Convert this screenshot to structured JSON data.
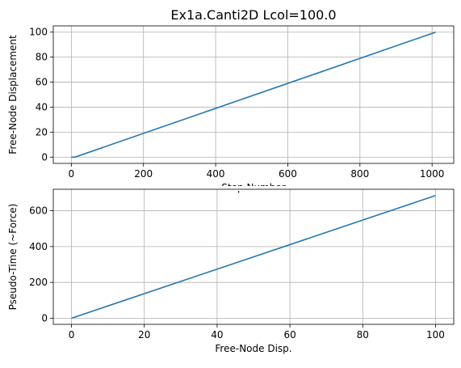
{
  "figure_title": "Ex1a.Canti2D Lcol=100.0",
  "colors": {
    "line": "#1f77b4",
    "grid": "#b0b0b0",
    "axis": "#000000"
  },
  "chart_data": [
    {
      "type": "line",
      "title": "",
      "xlabel": "Step Number",
      "ylabel": "Free-Node Displacement",
      "xlim": [
        -50,
        1060
      ],
      "ylim": [
        -5,
        105
      ],
      "xticks": [
        0,
        200,
        400,
        600,
        800,
        1000
      ],
      "yticks": [
        0,
        20,
        40,
        60,
        80,
        100
      ],
      "grid": true,
      "series": [
        {
          "x": [
            0,
            10,
            1010
          ],
          "y": [
            0,
            0,
            100
          ]
        }
      ]
    },
    {
      "type": "line",
      "title": "",
      "xlabel": "Free-Node Disp.",
      "ylabel": "Pseudo-Time (~Force)",
      "xlim": [
        -5,
        105
      ],
      "ylim": [
        -34,
        720
      ],
      "xticks": [
        0,
        20,
        40,
        60,
        80,
        100
      ],
      "yticks": [
        0,
        200,
        400,
        600
      ],
      "grid": true,
      "series": [
        {
          "x": [
            0,
            100
          ],
          "y": [
            0,
            685
          ]
        }
      ]
    }
  ]
}
